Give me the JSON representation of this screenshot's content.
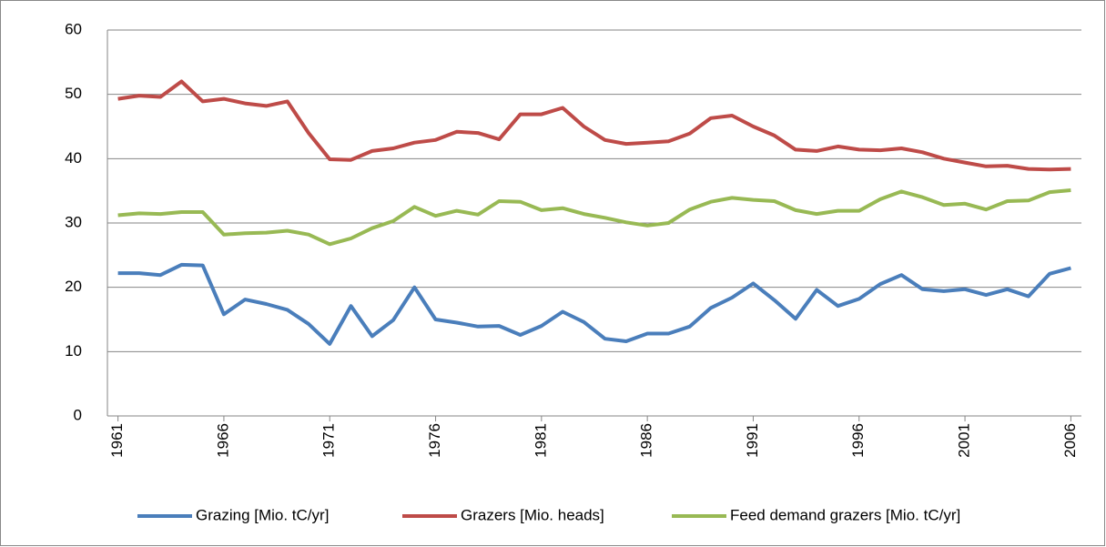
{
  "chart_data": {
    "type": "line",
    "x": [
      1961,
      1962,
      1963,
      1964,
      1965,
      1966,
      1967,
      1968,
      1969,
      1970,
      1971,
      1972,
      1973,
      1974,
      1975,
      1976,
      1977,
      1978,
      1979,
      1980,
      1981,
      1982,
      1983,
      1984,
      1985,
      1986,
      1987,
      1988,
      1989,
      1990,
      1991,
      1992,
      1993,
      1994,
      1995,
      1996,
      1997,
      1998,
      1999,
      2000,
      2001,
      2002,
      2003,
      2004,
      2005,
      2006
    ],
    "xlim": [
      1960.5,
      2006.5
    ],
    "xticks": [
      1961,
      1966,
      1971,
      1976,
      1981,
      1986,
      1991,
      1996,
      2001,
      2006
    ],
    "ylim": [
      0,
      60
    ],
    "yticks": [
      0,
      10,
      20,
      30,
      40,
      50,
      60
    ],
    "grid": true,
    "legend": "bottom",
    "series": [
      {
        "name": "Grazing [Mio. tC/yr]",
        "color": "#4a7ebb",
        "values": [
          22.2,
          22.2,
          21.9,
          23.5,
          23.4,
          15.8,
          18.1,
          17.4,
          16.5,
          14.3,
          11.2,
          17.1,
          12.4,
          14.9,
          20.0,
          15.0,
          14.5,
          13.9,
          14.0,
          12.6,
          14.0,
          16.2,
          14.6,
          12.0,
          11.6,
          12.8,
          12.8,
          13.9,
          16.8,
          18.4,
          20.6,
          18.0,
          15.1,
          19.6,
          17.1,
          18.2,
          20.5,
          21.9,
          19.7,
          19.4,
          19.7,
          18.8,
          19.7,
          18.6,
          22.1,
          23.0
        ]
      },
      {
        "name": "Grazers [Mio. heads]",
        "color": "#be4b48",
        "values": [
          49.3,
          49.8,
          49.6,
          52.0,
          48.9,
          49.3,
          48.6,
          48.2,
          48.9,
          44.0,
          39.9,
          39.8,
          41.2,
          41.6,
          42.5,
          42.9,
          44.2,
          44.0,
          43.0,
          46.9,
          46.9,
          47.9,
          45.0,
          42.9,
          42.3,
          42.5,
          42.7,
          43.9,
          46.3,
          46.7,
          45.0,
          43.6,
          41.4,
          41.2,
          41.9,
          41.4,
          41.3,
          41.6,
          41.0,
          40.0,
          39.4,
          38.8,
          38.9,
          38.4,
          38.3,
          38.4
        ]
      },
      {
        "name": "Feed demand grazers [Mio. tC/yr]",
        "color": "#98b954",
        "values": [
          31.2,
          31.5,
          31.4,
          31.7,
          31.7,
          28.2,
          28.4,
          28.5,
          28.8,
          28.2,
          26.7,
          27.6,
          29.2,
          30.3,
          32.5,
          31.1,
          31.9,
          31.3,
          33.4,
          33.3,
          32.0,
          32.3,
          31.4,
          30.8,
          30.1,
          29.6,
          30.0,
          32.1,
          33.3,
          33.9,
          33.6,
          33.4,
          32.0,
          31.4,
          31.9,
          31.9,
          33.7,
          34.9,
          34.0,
          32.8,
          33.0,
          32.1,
          33.4,
          33.5,
          34.8,
          35.1
        ]
      }
    ]
  }
}
